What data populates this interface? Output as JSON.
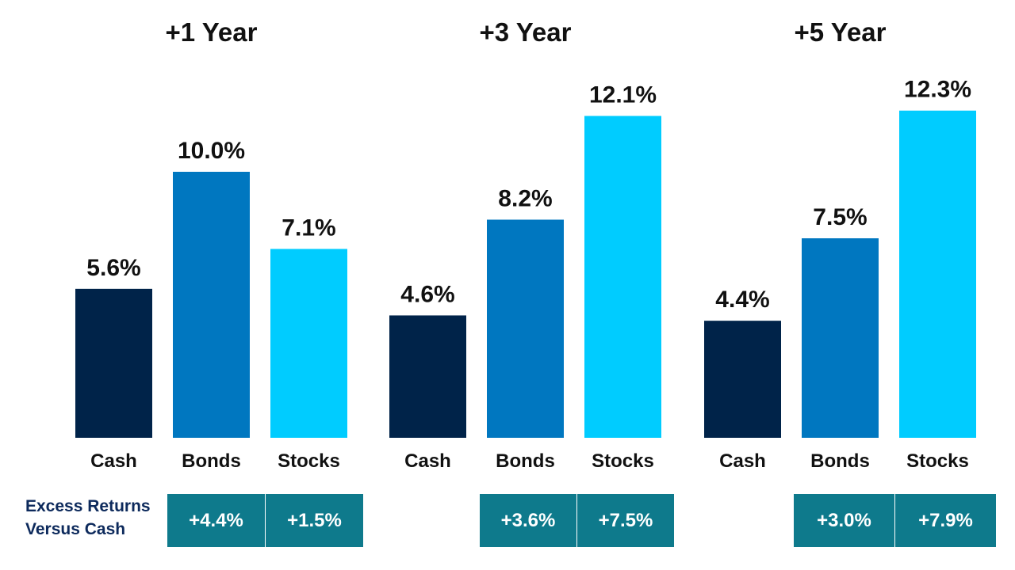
{
  "chart_data": {
    "type": "bar",
    "categories": [
      "Cash",
      "Bonds",
      "Stocks"
    ],
    "groups": [
      {
        "title": "+1 Year",
        "values": [
          5.6,
          10.0,
          7.1
        ],
        "labels": [
          "5.6%",
          "10.0%",
          "7.1%"
        ]
      },
      {
        "title": "+3 Year",
        "values": [
          4.6,
          8.2,
          12.1
        ],
        "labels": [
          "4.6%",
          "8.2%",
          "12.1%"
        ]
      },
      {
        "title": "+5 Year",
        "values": [
          4.4,
          7.5,
          12.3
        ],
        "labels": [
          "4.4%",
          "7.5%",
          "12.3%"
        ]
      }
    ],
    "colors": {
      "Cash": "#002349",
      "Bonds": "#0077c0",
      "Stocks": "#00ccff"
    },
    "ylim": [
      0,
      12.3
    ],
    "grid": false,
    "excess_returns": {
      "label_line1": "Excess Returns",
      "label_line2": "Versus Cash",
      "groups": [
        [
          "+4.4%",
          "+1.5%"
        ],
        [
          "+3.6%",
          "+7.5%"
        ],
        [
          "+3.0%",
          "+7.9%"
        ]
      ],
      "box_color": "#0e7a8c",
      "label_color": "#0d2a5c"
    }
  }
}
